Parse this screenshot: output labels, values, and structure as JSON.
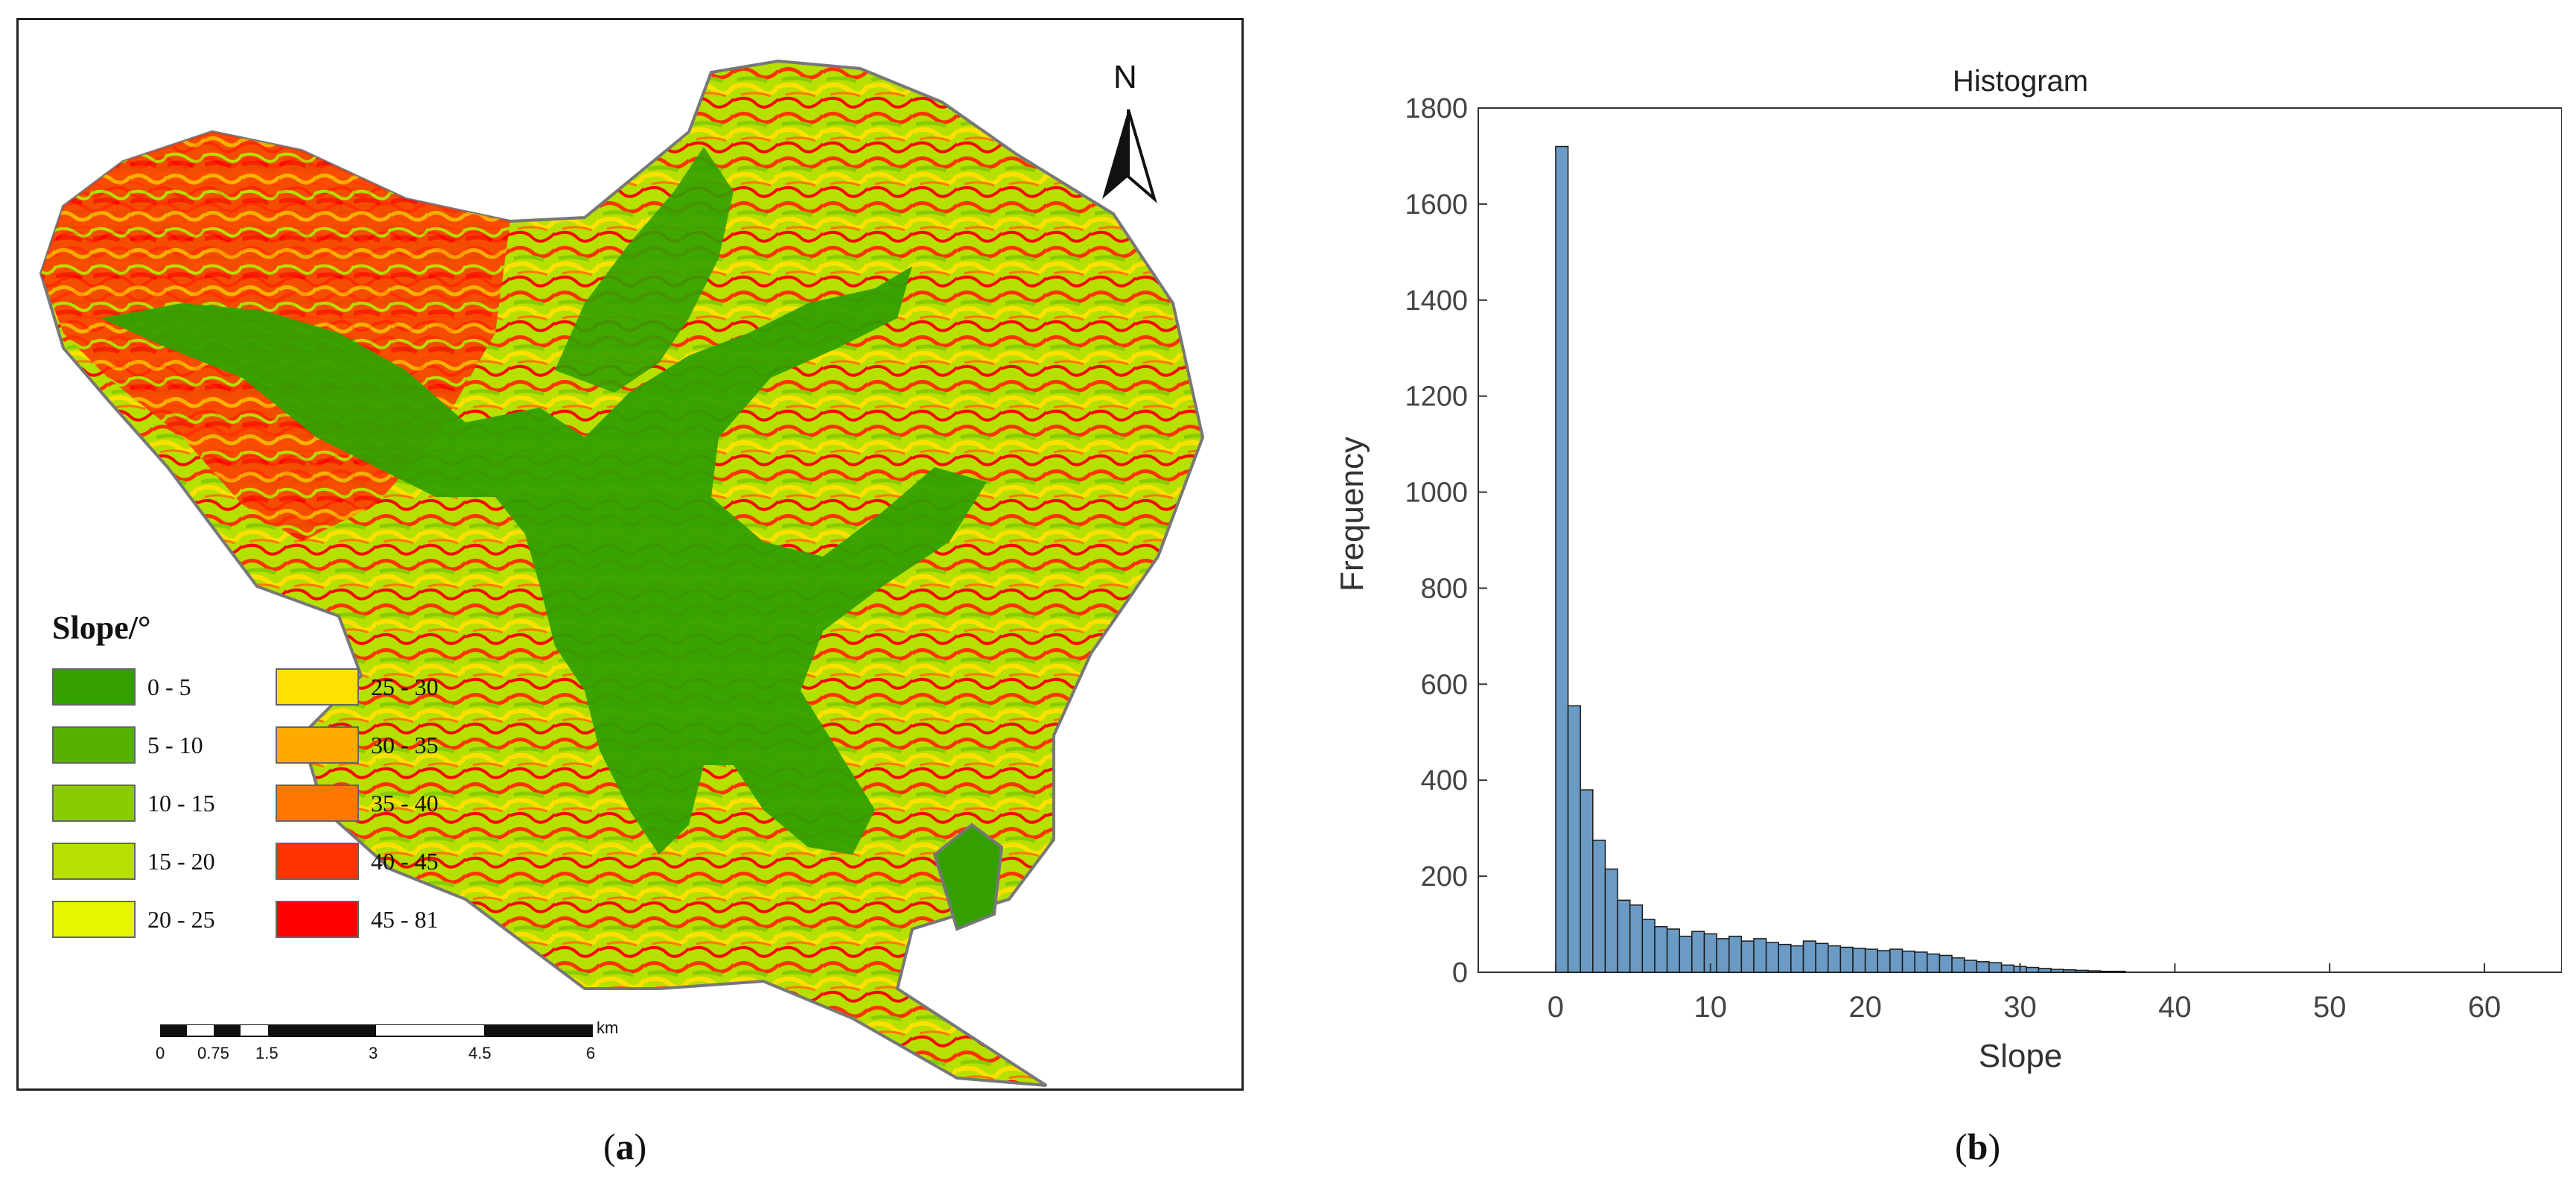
{
  "panel_a": {
    "caption_letter": "a",
    "legend": {
      "title": "Slope/°",
      "classes": [
        {
          "label": "0 - 5",
          "color": "#33a000"
        },
        {
          "label": "5 - 10",
          "color": "#55b000"
        },
        {
          "label": "10 - 15",
          "color": "#88cc00"
        },
        {
          "label": "15 - 20",
          "color": "#b5e000"
        },
        {
          "label": "20 - 25",
          "color": "#e8f500"
        },
        {
          "label": "25 - 30",
          "color": "#ffe000"
        },
        {
          "label": "30 - 35",
          "color": "#ffaa00"
        },
        {
          "label": "35 - 40",
          "color": "#ff7700"
        },
        {
          "label": "40 - 45",
          "color": "#ff3300"
        },
        {
          "label": "45 - 81",
          "color": "#ff0000"
        }
      ]
    },
    "north_label": "N",
    "scale_bar": {
      "unit": "km",
      "ticks": [
        "0",
        "0.75",
        "1.5",
        "3",
        "4.5",
        "6"
      ]
    }
  },
  "panel_b": {
    "caption_letter": "b",
    "chart_data": {
      "type": "bar",
      "title": "Histogram",
      "xlabel": "Slope",
      "ylabel": "Frequency",
      "xlim": [
        -5,
        65
      ],
      "ylim": [
        0,
        1800
      ],
      "xticks": [
        0,
        10,
        20,
        30,
        40,
        50,
        60
      ],
      "yticks": [
        0,
        200,
        400,
        600,
        800,
        1000,
        1200,
        1400,
        1600,
        1800
      ],
      "bar_color": "#6b9ac4",
      "bin_width": 0.8,
      "bin_start": 0,
      "values": [
        1720,
        555,
        380,
        275,
        215,
        150,
        140,
        110,
        95,
        90,
        75,
        85,
        80,
        70,
        75,
        65,
        70,
        62,
        58,
        55,
        65,
        60,
        55,
        52,
        50,
        48,
        45,
        48,
        44,
        42,
        38,
        35,
        30,
        25,
        22,
        20,
        15,
        12,
        10,
        8,
        6,
        5,
        4,
        3,
        2,
        2
      ]
    }
  }
}
